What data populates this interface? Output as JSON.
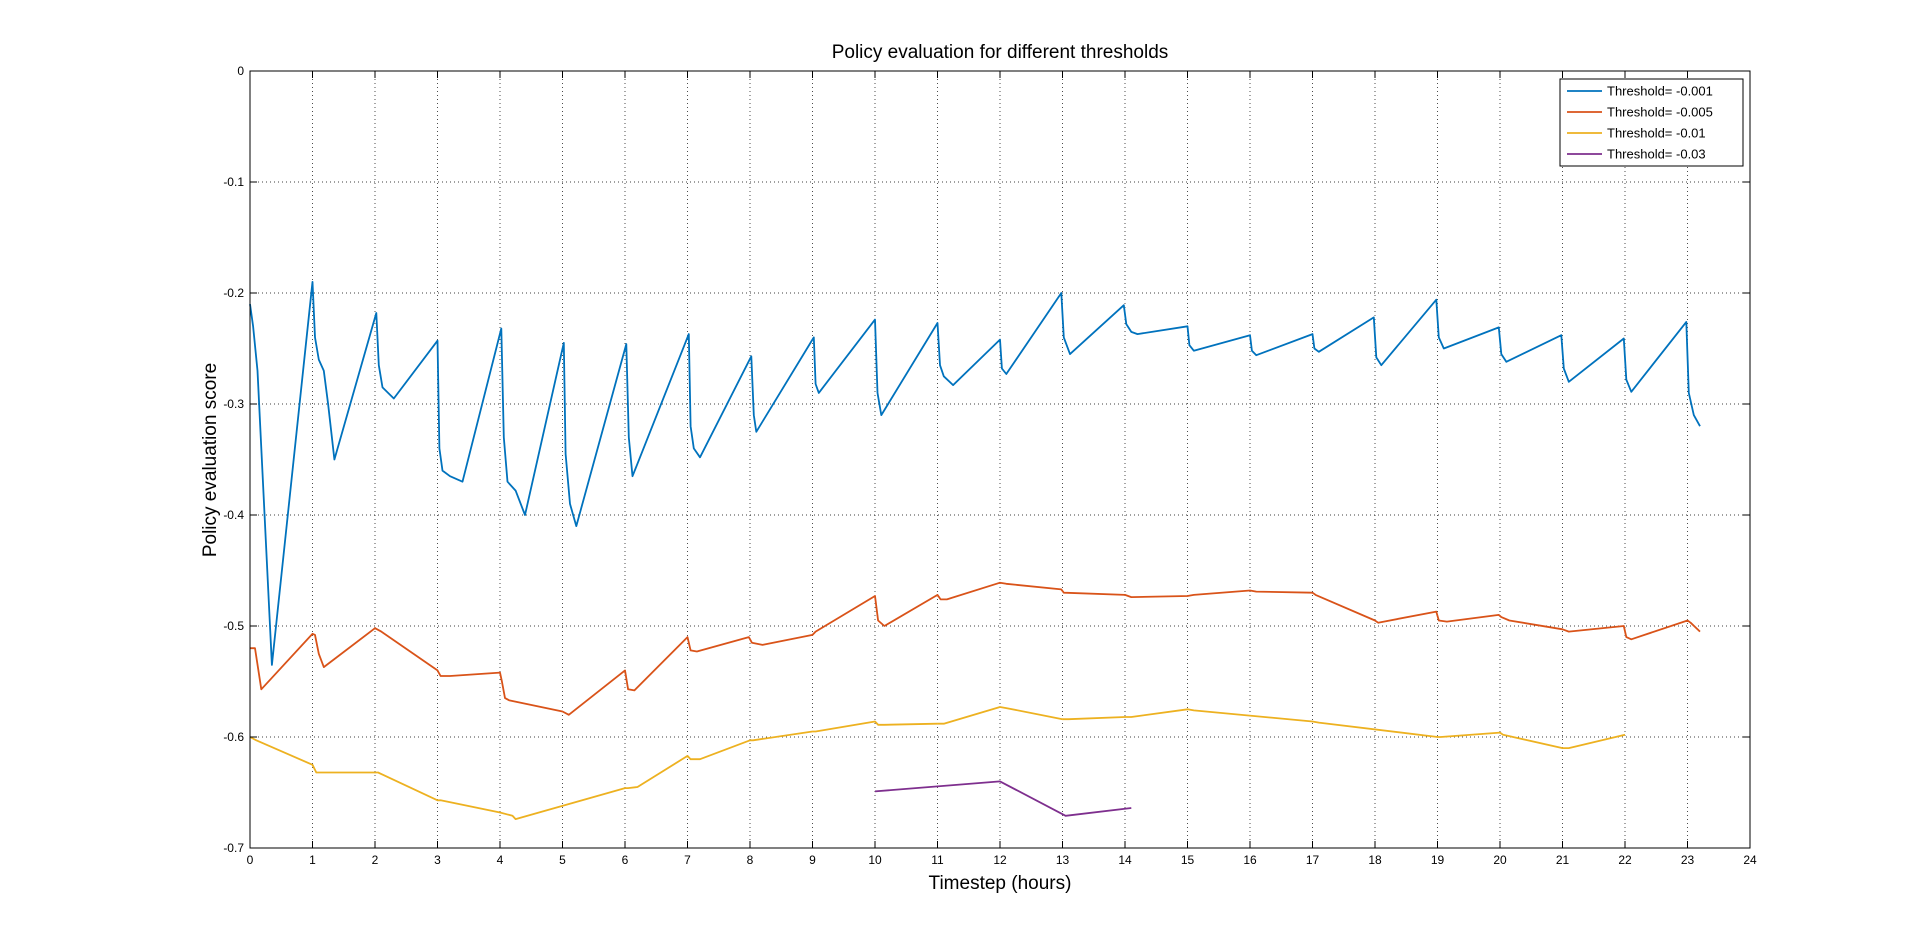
{
  "chart_data": {
    "type": "line",
    "title": "Policy evaluation for different thresholds",
    "xlabel": "Timestep (hours)",
    "ylabel": "Policy evaluation score",
    "xlim": [
      0,
      24
    ],
    "ylim": [
      -0.7,
      0
    ],
    "xticks": [
      0,
      1,
      2,
      3,
      4,
      5,
      6,
      7,
      8,
      9,
      10,
      11,
      12,
      13,
      14,
      15,
      16,
      17,
      18,
      19,
      20,
      21,
      22,
      23,
      24
    ],
    "yticks": [
      0,
      -0.1,
      -0.2,
      -0.3,
      -0.4,
      -0.5,
      -0.6,
      -0.7
    ],
    "xtick_labels": [
      "0",
      "1",
      "2",
      "3",
      "4",
      "5",
      "6",
      "7",
      "8",
      "9",
      "10",
      "11",
      "12",
      "13",
      "14",
      "15",
      "16",
      "17",
      "18",
      "19",
      "20",
      "21",
      "22",
      "23",
      "24"
    ],
    "ytick_labels": [
      "0",
      "-0.1",
      "-0.2",
      "-0.3",
      "-0.4",
      "-0.5",
      "-0.6",
      "-0.7"
    ],
    "grid": true,
    "legend_position": "top-right",
    "series": [
      {
        "name": "Threshold= -0.001",
        "color": "#0072BD",
        "x": [
          0,
          0.05,
          0.12,
          0.35,
          1.0,
          1.04,
          1.1,
          1.18,
          1.25,
          1.35,
          2.02,
          2.06,
          2.12,
          2.3,
          3.0,
          3.03,
          3.08,
          3.2,
          3.4,
          4.02,
          4.06,
          4.12,
          4.25,
          4.4,
          5.02,
          5.05,
          5.12,
          5.22,
          6.02,
          6.06,
          6.12,
          7.02,
          7.05,
          7.1,
          7.2,
          8.02,
          8.06,
          8.1,
          9.02,
          9.05,
          9.1,
          10.0,
          10.04,
          10.1,
          11.0,
          11.04,
          11.1,
          11.25,
          12.0,
          12.03,
          12.1,
          12.98,
          13.02,
          13.12,
          13.98,
          14.02,
          14.1,
          14.2,
          15.0,
          15.03,
          15.1,
          16.0,
          16.03,
          16.1,
          17.0,
          17.03,
          17.1,
          17.98,
          18.02,
          18.1,
          18.98,
          19.02,
          19.1,
          19.98,
          20.02,
          20.1,
          20.98,
          21.02,
          21.1,
          21.98,
          22.02,
          22.1,
          22.98,
          23.02,
          23.1,
          23.2
        ],
        "y": [
          -0.21,
          -0.23,
          -0.27,
          -0.535,
          -0.19,
          -0.24,
          -0.26,
          -0.27,
          -0.3,
          -0.35,
          -0.218,
          -0.265,
          -0.285,
          -0.295,
          -0.243,
          -0.34,
          -0.36,
          -0.365,
          -0.37,
          -0.232,
          -0.33,
          -0.37,
          -0.378,
          -0.4,
          -0.245,
          -0.345,
          -0.39,
          -0.41,
          -0.246,
          -0.33,
          -0.365,
          -0.237,
          -0.32,
          -0.34,
          -0.348,
          -0.257,
          -0.31,
          -0.325,
          -0.24,
          -0.282,
          -0.29,
          -0.224,
          -0.29,
          -0.31,
          -0.227,
          -0.265,
          -0.275,
          -0.283,
          -0.242,
          -0.268,
          -0.273,
          -0.2,
          -0.24,
          -0.255,
          -0.211,
          -0.228,
          -0.235,
          -0.237,
          -0.23,
          -0.247,
          -0.252,
          -0.238,
          -0.252,
          -0.256,
          -0.237,
          -0.25,
          -0.253,
          -0.222,
          -0.258,
          -0.265,
          -0.206,
          -0.24,
          -0.25,
          -0.231,
          -0.255,
          -0.262,
          -0.238,
          -0.268,
          -0.28,
          -0.241,
          -0.278,
          -0.289,
          -0.226,
          -0.29,
          -0.31,
          -0.32
        ]
      },
      {
        "name": "Threshold= -0.005",
        "color": "#D95319",
        "x": [
          0,
          0.08,
          0.18,
          1.0,
          1.04,
          1.1,
          1.18,
          2.0,
          2.1,
          3.0,
          3.05,
          3.2,
          4.0,
          4.03,
          4.08,
          4.15,
          5.0,
          5.1,
          6.0,
          6.05,
          6.15,
          7.0,
          7.05,
          7.15,
          7.98,
          8.03,
          8.2,
          9.0,
          9.05,
          10.0,
          10.05,
          10.15,
          11.0,
          11.05,
          11.15,
          12.0,
          12.1,
          12.98,
          13.02,
          14.0,
          14.1,
          15.0,
          15.1,
          16.0,
          16.1,
          17.0,
          17.05,
          18.0,
          18.05,
          18.98,
          19.02,
          19.15,
          19.98,
          20.02,
          20.15,
          21.0,
          21.1,
          21.98,
          22.02,
          22.1,
          23.0,
          23.05,
          23.2
        ],
        "y": [
          -0.52,
          -0.52,
          -0.557,
          -0.507,
          -0.508,
          -0.525,
          -0.537,
          -0.502,
          -0.505,
          -0.54,
          -0.545,
          -0.545,
          -0.542,
          -0.55,
          -0.565,
          -0.567,
          -0.577,
          -0.58,
          -0.54,
          -0.557,
          -0.558,
          -0.51,
          -0.522,
          -0.523,
          -0.51,
          -0.515,
          -0.517,
          -0.508,
          -0.505,
          -0.473,
          -0.495,
          -0.5,
          -0.472,
          -0.476,
          -0.476,
          -0.461,
          -0.462,
          -0.467,
          -0.47,
          -0.472,
          -0.474,
          -0.473,
          -0.472,
          -0.468,
          -0.469,
          -0.47,
          -0.472,
          -0.495,
          -0.497,
          -0.487,
          -0.495,
          -0.496,
          -0.49,
          -0.492,
          -0.495,
          -0.503,
          -0.505,
          -0.5,
          -0.51,
          -0.512,
          -0.495,
          -0.497,
          -0.505
        ]
      },
      {
        "name": "Threshold= -0.01",
        "color": "#EDB120",
        "x": [
          0,
          0.1,
          1.0,
          1.06,
          2.0,
          2.05,
          3.0,
          3.05,
          4.0,
          4.2,
          4.25,
          6.0,
          6.05,
          6.2,
          7.0,
          7.05,
          7.2,
          8.0,
          8.05,
          9.0,
          9.05,
          10.0,
          10.05,
          10.15,
          11.0,
          11.1,
          12.0,
          12.1,
          13.0,
          13.1,
          14.0,
          14.1,
          15.0,
          15.1,
          17.0,
          17.1,
          19.0,
          19.05,
          20.0,
          20.05,
          21.0,
          21.1,
          22.0
        ],
        "y": [
          -0.6,
          -0.603,
          -0.625,
          -0.632,
          -0.632,
          -0.632,
          -0.657,
          -0.657,
          -0.668,
          -0.671,
          -0.674,
          -0.646,
          -0.646,
          -0.645,
          -0.617,
          -0.62,
          -0.62,
          -0.603,
          -0.603,
          -0.595,
          -0.595,
          -0.586,
          -0.589,
          -0.589,
          -0.588,
          -0.588,
          -0.573,
          -0.574,
          -0.584,
          -0.584,
          -0.582,
          -0.582,
          -0.575,
          -0.576,
          -0.586,
          -0.587,
          -0.6,
          -0.6,
          -0.596,
          -0.598,
          -0.61,
          -0.61,
          -0.598
        ]
      },
      {
        "name": "Threshold= -0.03",
        "color": "#7E2F8E",
        "x": [
          10.0,
          12.0,
          13.05,
          14.1
        ],
        "y": [
          -0.649,
          -0.64,
          -0.671,
          -0.664
        ]
      }
    ]
  }
}
